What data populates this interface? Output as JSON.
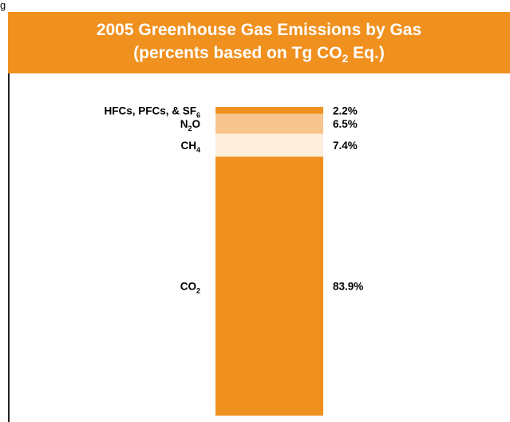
{
  "top_text": "g",
  "chart_data": {
    "type": "bar",
    "stacked": true,
    "title_line1": "2005 Greenhouse Gas Emissions by Gas",
    "title_line2_prefix": "(percents based on Tg CO",
    "title_line2_sub": "2",
    "title_line2_suffix": " Eq.)",
    "segments": [
      {
        "name": "CO",
        "sub": "2",
        "value": 83.9,
        "label": "83.9%",
        "color": "#F0901E"
      },
      {
        "name": "CH",
        "sub": "4",
        "value": 7.4,
        "label": "7.4%",
        "color": "#FDEEDB"
      },
      {
        "name": "N",
        "sub": "2",
        "name_suffix": "O",
        "value": 6.5,
        "label": "6.5%",
        "color": "#F8C48E"
      },
      {
        "name": "HFCs, PFCs, & SF",
        "sub": "6",
        "value": 2.2,
        "label": "2.2%",
        "color": "#F0901E"
      }
    ],
    "total": 100,
    "colors": {
      "accent": "#F0901E",
      "header_text": "#ffffff"
    }
  }
}
